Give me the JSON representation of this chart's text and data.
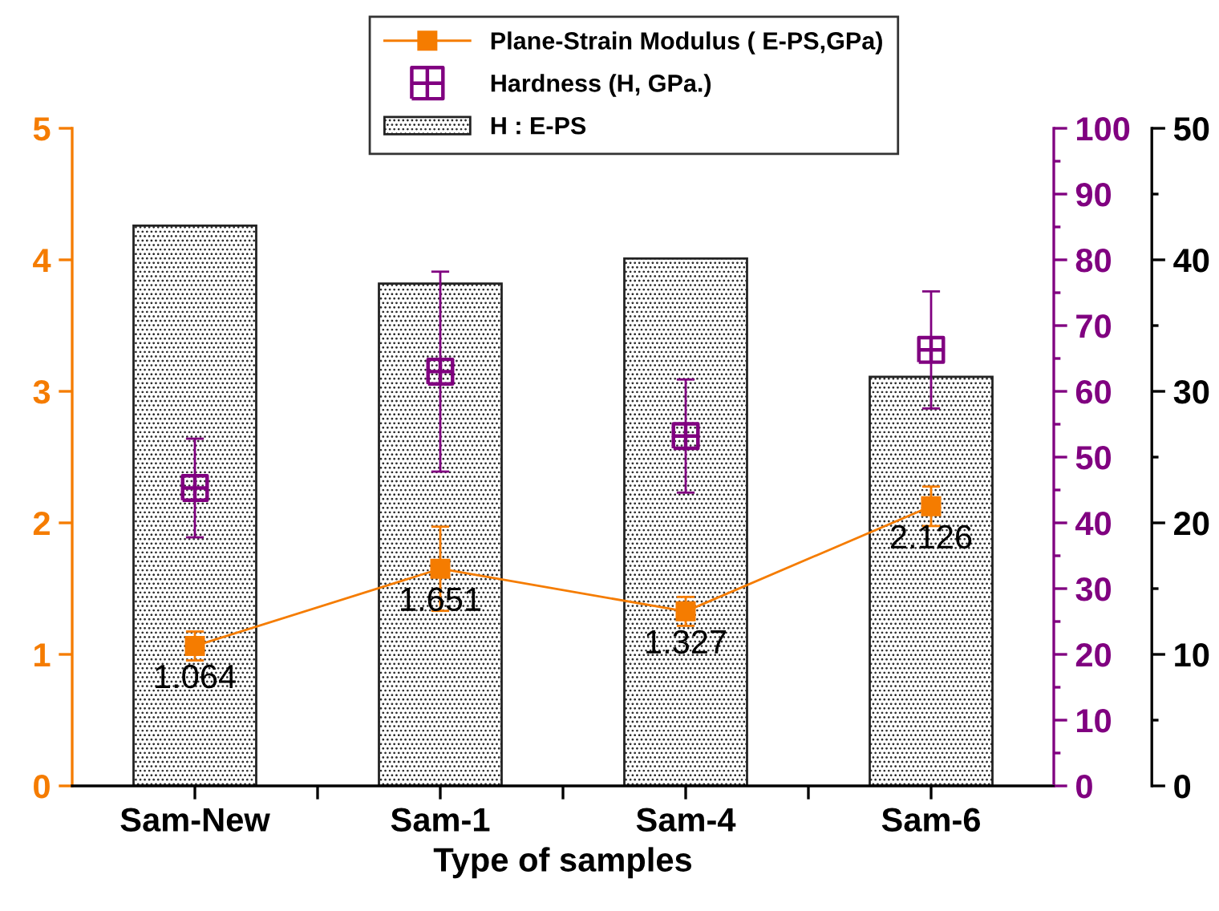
{
  "chart_data": {
    "type": "line",
    "xlabel": "Type of samples",
    "categories": [
      "Sam-New",
      "Sam-1",
      "Sam-4",
      "Sam-6"
    ],
    "series": [
      {
        "name": "H : E-PS",
        "type": "bar",
        "axis": "y3",
        "color": "#222222",
        "values": [
          42.6,
          38.2,
          40.1,
          31.1
        ]
      },
      {
        "name": "Plane-Strain Modulus ( E-PS,GPa)",
        "axis": "y",
        "color": "#f57c00",
        "marker": "square",
        "values": [
          1.064,
          1.651,
          1.327,
          2.126
        ],
        "errors": [
          0.11,
          0.32,
          0.11,
          0.15
        ],
        "value_labels": [
          "1.064",
          "1.651",
          "1.327",
          "2.126"
        ]
      },
      {
        "name": "Hardness (H, GPa.)",
        "type": "scatter",
        "axis": "y2",
        "color": "#800080",
        "values": [
          45.3,
          63.0,
          53.2,
          66.3
        ],
        "errors": [
          7.5,
          15.2,
          8.6,
          8.9
        ]
      }
    ],
    "ylim": [
      0,
      5
    ],
    "yticks": [
      0,
      1,
      2,
      3,
      4,
      5
    ],
    "y2lim": [
      0,
      100
    ],
    "y2ticks": [
      0,
      {
        "value": 5,
        "label": null
      },
      10,
      {
        "value": 15,
        "label": null
      },
      20,
      {
        "value": 25,
        "label": null
      },
      30,
      {
        "value": 35,
        "label": null
      },
      40,
      {
        "value": 45,
        "label": null
      },
      50,
      {
        "value": 55,
        "label": null
      },
      60,
      {
        "value": 65,
        "label": null
      },
      70,
      {
        "value": 75,
        "label": null
      },
      80,
      {
        "value": 85,
        "label": null
      },
      90,
      {
        "value": 95,
        "label": null
      },
      100
    ],
    "y3lim": [
      0,
      50
    ],
    "y3ticks": [
      0,
      {
        "value": 5,
        "label": null
      },
      10,
      {
        "value": 15,
        "label": null
      },
      20,
      {
        "value": 25,
        "label": null
      },
      30,
      {
        "value": 35,
        "label": null
      },
      40,
      {
        "value": 45,
        "label": null
      },
      50
    ],
    "grid": false,
    "legend": "top"
  }
}
